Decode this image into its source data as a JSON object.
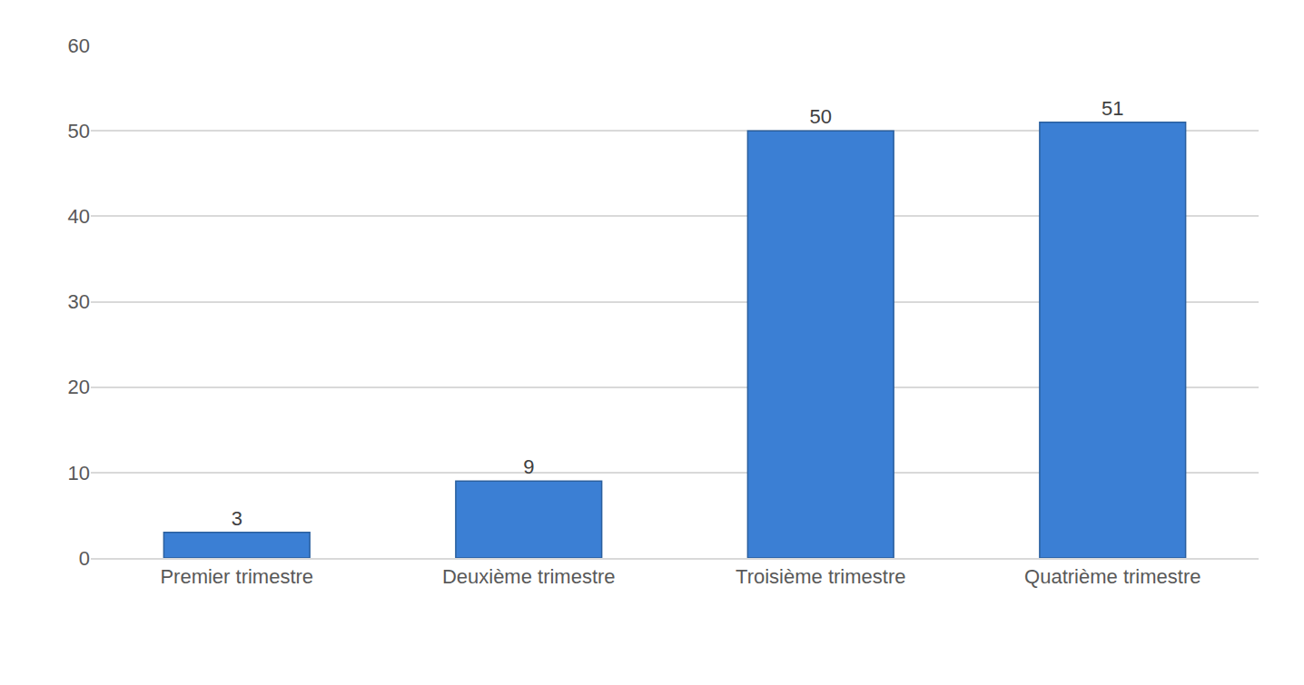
{
  "chart_data": {
    "type": "bar",
    "categories": [
      "Premier trimestre",
      "Deuxième trimestre",
      "Troisième trimestre",
      "Quatrième trimestre"
    ],
    "values": [
      3,
      9,
      50,
      51
    ],
    "color": "#3b7fd4",
    "ylim": [
      0,
      60
    ],
    "yticks": [
      0,
      10,
      20,
      30,
      40,
      50,
      60
    ],
    "grid": true,
    "data_labels": true
  }
}
